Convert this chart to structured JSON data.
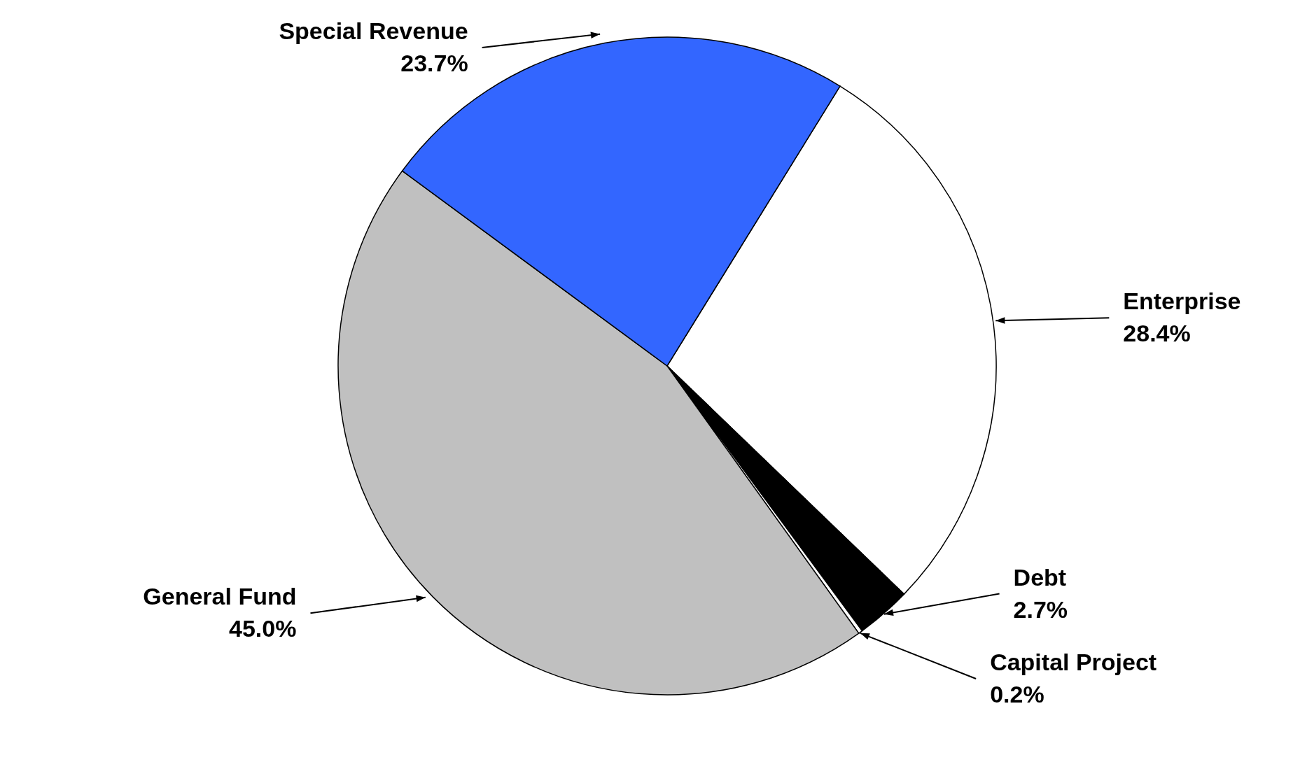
{
  "chart_data": {
    "type": "pie",
    "categories": [
      "Enterprise",
      "Debt",
      "Capital Project",
      "General Fund",
      "Special Revenue"
    ],
    "values": [
      28.4,
      2.7,
      0.2,
      45.0,
      23.7
    ],
    "value_labels": [
      "28.4%",
      "2.7%",
      "0.2%",
      "45.0%",
      "23.7%"
    ],
    "colors": [
      "#ffffff",
      "#000000",
      "#ffffff",
      "#c0c0c0",
      "#3366ff"
    ]
  }
}
